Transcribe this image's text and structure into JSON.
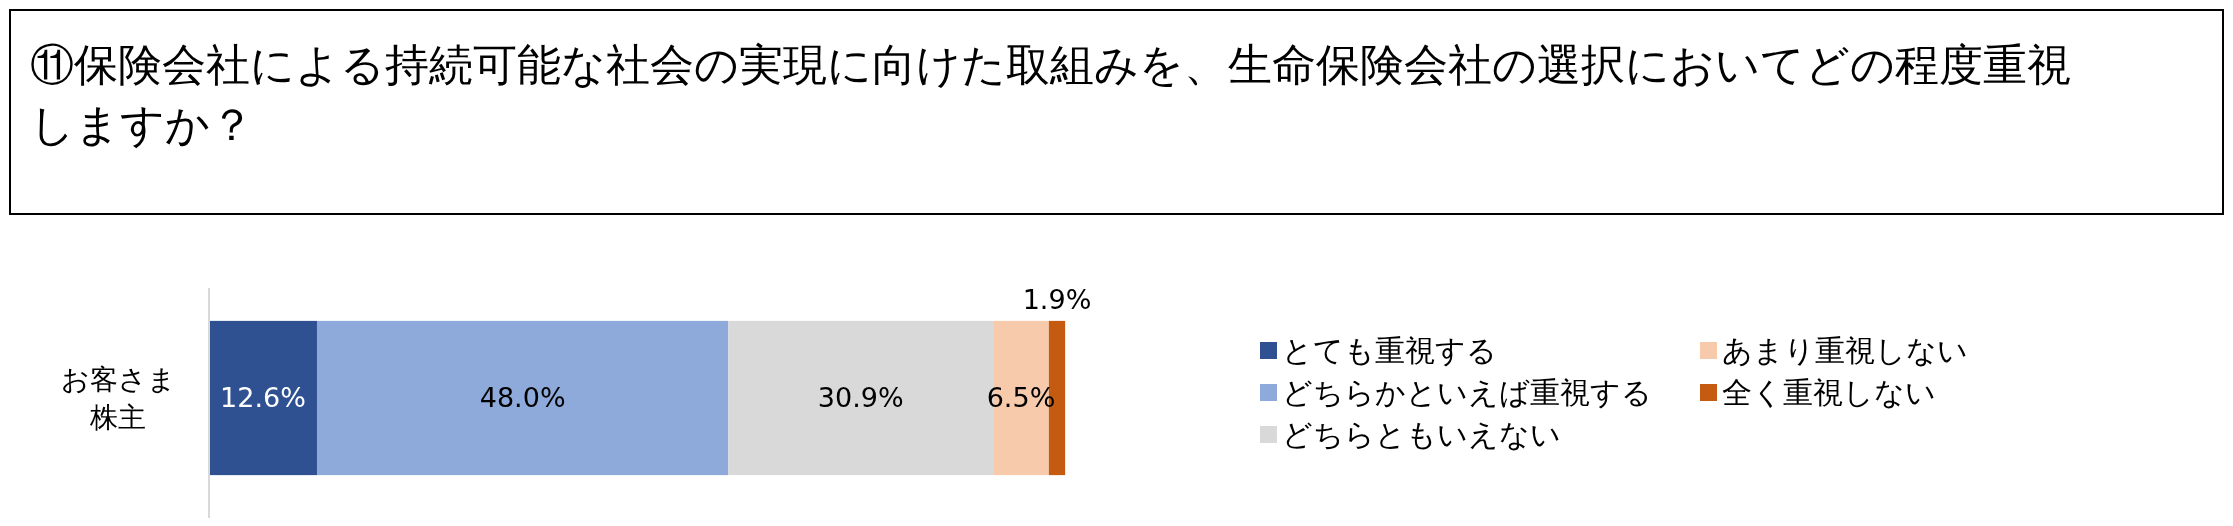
{
  "chart_data": {
    "type": "bar",
    "orientation": "horizontal",
    "stacked": true,
    "title": "⑪保険会社による持続可能な社会の実現に向けた取組みを、生命保険会社の選択においてどの程度重視しますか？",
    "categories": [
      "お客さま株主"
    ],
    "xlim": [
      0,
      100
    ],
    "tick_labels": "y",
    "legend": "right",
    "series": [
      {
        "name": "とても重視する",
        "color": "#2f5191",
        "values": [
          12.6
        ],
        "value_labels": [
          "12.6%"
        ]
      },
      {
        "name": "どちらかといえば重視する",
        "color": "#8eaadb",
        "values": [
          48.0
        ],
        "value_labels": [
          "48.0%"
        ]
      },
      {
        "name": "どちらともいえない",
        "color": "#d9d9d9",
        "values": [
          30.9
        ],
        "value_labels": [
          "30.9%"
        ]
      },
      {
        "name": "あまり重視しない",
        "color": "#f7caac",
        "values": [
          6.5
        ],
        "value_labels": [
          "6.5%"
        ]
      },
      {
        "name": "全く重視しない",
        "color": "#c55a11",
        "values": [
          1.9
        ],
        "value_labels": [
          "1.9%"
        ]
      }
    ]
  }
}
